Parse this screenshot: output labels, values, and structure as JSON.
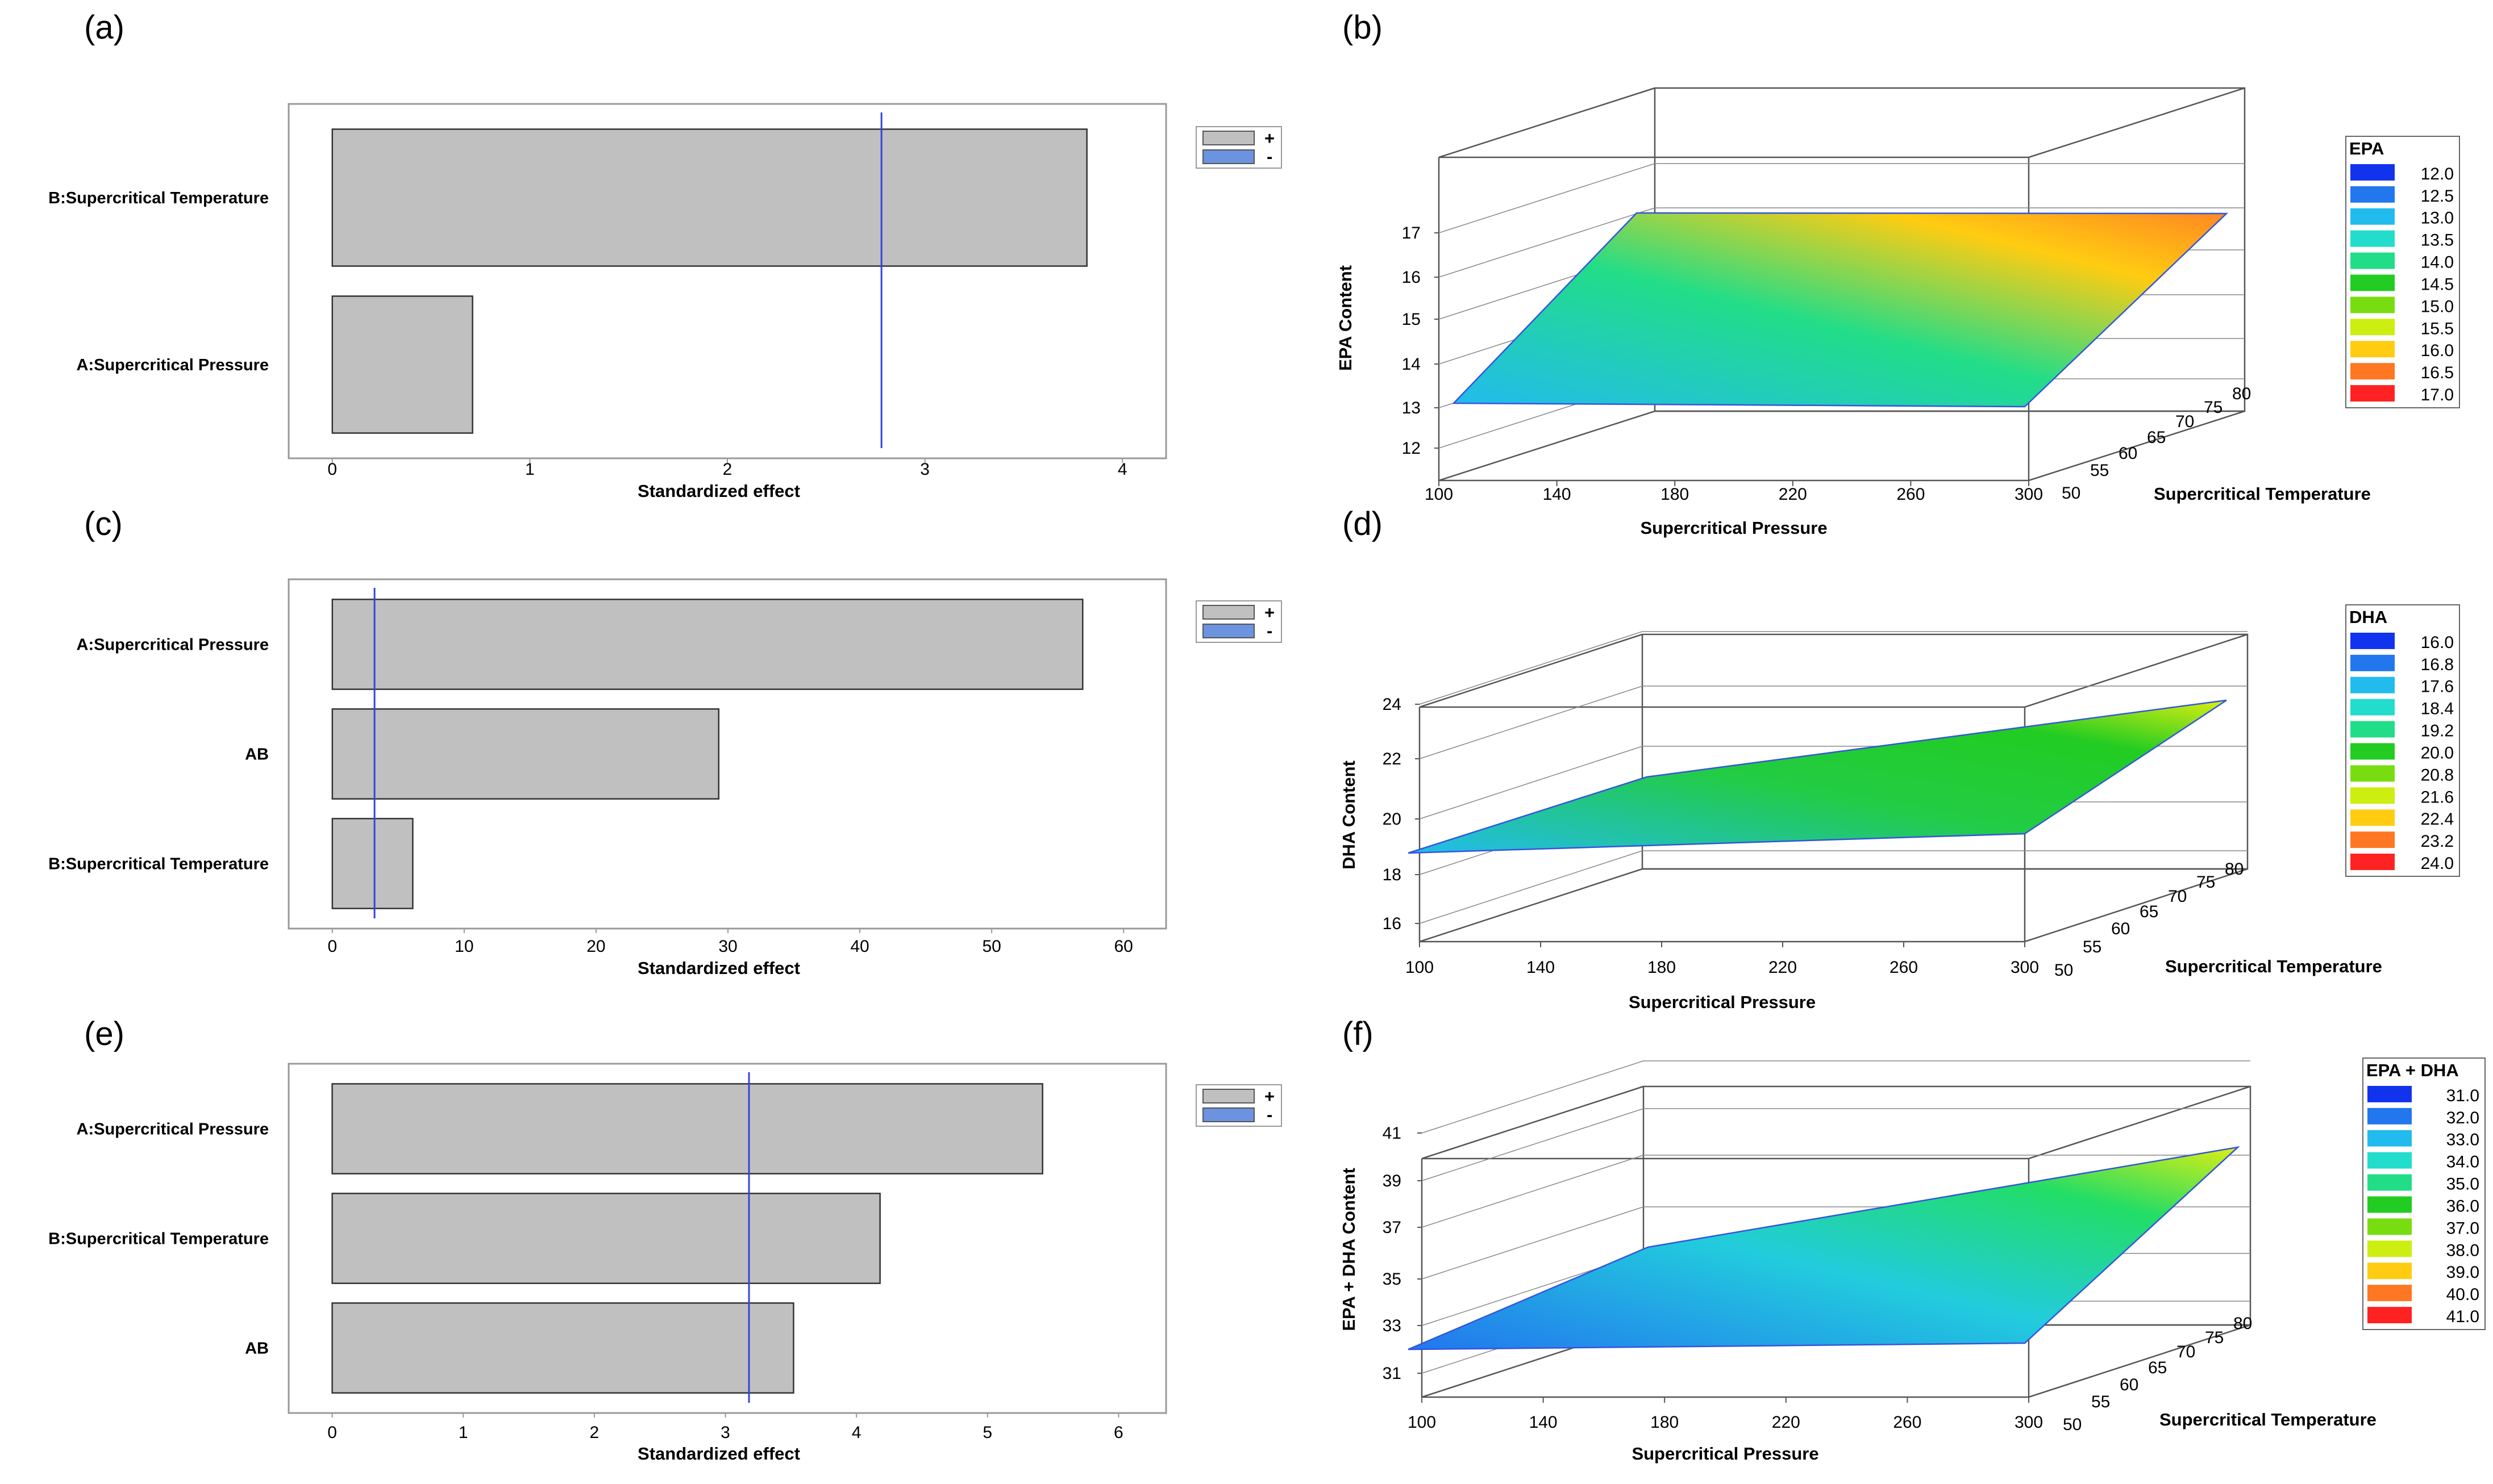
{
  "chart_data": [
    {
      "panel": "(a)",
      "type": "bar",
      "orientation": "horizontal",
      "categories": [
        "B:Supercritical Temperature",
        "A:Supercritical Pressure"
      ],
      "values": [
        3.82,
        0.71
      ],
      "reference_line": 2.78,
      "xlabel": "Standardized effect",
      "ticks": [
        "0",
        "1",
        "2",
        "3",
        "4"
      ],
      "xlim": [
        -0.1,
        4.1
      ],
      "legend": [
        "+",
        "-"
      ],
      "legend_colors": [
        "#c0c0c0",
        "#6b93e0"
      ]
    },
    {
      "panel": "(b)",
      "type": "surface",
      "zlabel": "EPA Content",
      "xlabel": "Supercritical Pressure",
      "ylabel": "Supercritical Temperature",
      "x_ticks": [
        "100",
        "140",
        "180",
        "220",
        "260",
        "300"
      ],
      "y_ticks": [
        "50",
        "55",
        "60",
        "65",
        "70",
        "75",
        "80"
      ],
      "z_ticks": [
        "12",
        "13",
        "14",
        "15",
        "16",
        "17"
      ],
      "legend_title": "EPA",
      "legend_levels": [
        "12.0",
        "12.5",
        "13.0",
        "13.5",
        "14.0",
        "14.5",
        "15.0",
        "15.5",
        "16.0",
        "16.5",
        "17.0"
      ]
    },
    {
      "panel": "(c)",
      "type": "bar",
      "orientation": "horizontal",
      "categories": [
        "A:Supercritical Pressure",
        "AB",
        "B:Supercritical Temperature"
      ],
      "values": [
        56.9,
        29.3,
        6.1
      ],
      "reference_line": 3.2,
      "xlabel": "Standardized effect",
      "ticks": [
        "0",
        "10",
        "20",
        "30",
        "40",
        "50",
        "60"
      ],
      "xlim": [
        -1.5,
        61.5
      ],
      "legend": [
        "+",
        "-"
      ],
      "legend_colors": [
        "#c0c0c0",
        "#6b93e0"
      ]
    },
    {
      "panel": "(d)",
      "type": "surface",
      "zlabel": "DHA Content",
      "xlabel": "Supercritical Pressure",
      "ylabel": "Supercritical Temperature",
      "x_ticks": [
        "100",
        "140",
        "180",
        "220",
        "260",
        "300"
      ],
      "y_ticks": [
        "50",
        "55",
        "60",
        "65",
        "70",
        "75",
        "80"
      ],
      "z_ticks": [
        "16",
        "18",
        "20",
        "22",
        "24"
      ],
      "legend_title": "DHA",
      "legend_levels": [
        "16.0",
        "16.8",
        "17.6",
        "18.4",
        "19.2",
        "20.0",
        "20.8",
        "21.6",
        "22.4",
        "23.2",
        "24.0"
      ]
    },
    {
      "panel": "(e)",
      "type": "bar",
      "orientation": "horizontal",
      "categories": [
        "A:Supercritical Pressure",
        "B:Supercritical Temperature",
        "AB"
      ],
      "values": [
        5.42,
        4.18,
        3.52
      ],
      "reference_line": 3.18,
      "xlabel": "Standardized effect",
      "ticks": [
        "0",
        "1",
        "2",
        "3",
        "4",
        "5",
        "6"
      ],
      "xlim": [
        -0.15,
        6.15
      ],
      "legend": [
        "+",
        "-"
      ],
      "legend_colors": [
        "#c0c0c0",
        "#6b93e0"
      ]
    },
    {
      "panel": "(f)",
      "type": "surface",
      "zlabel": "EPA + DHA Content",
      "xlabel": "Supercritical Pressure",
      "ylabel": "Supercritical Temperature",
      "x_ticks": [
        "100",
        "140",
        "180",
        "220",
        "260",
        "300"
      ],
      "y_ticks": [
        "50",
        "55",
        "60",
        "65",
        "70",
        "75",
        "80"
      ],
      "z_ticks": [
        "31",
        "33",
        "35",
        "37",
        "39",
        "41"
      ],
      "legend_title": "EPA + DHA",
      "legend_levels": [
        "31.0",
        "32.0",
        "33.0",
        "34.0",
        "35.0",
        "36.0",
        "37.0",
        "38.0",
        "39.0",
        "40.0",
        "41.0"
      ]
    }
  ],
  "palette": {
    "bar_fill": "#c0c0c0",
    "ref_line": "#3344dd",
    "legend_levels": [
      "#1133ee",
      "#2277ee",
      "#22bbee",
      "#22ddcc",
      "#22dd88",
      "#22cc22",
      "#77dd11",
      "#ccee11",
      "#ffcc11",
      "#ff7722",
      "#ff2222"
    ]
  }
}
